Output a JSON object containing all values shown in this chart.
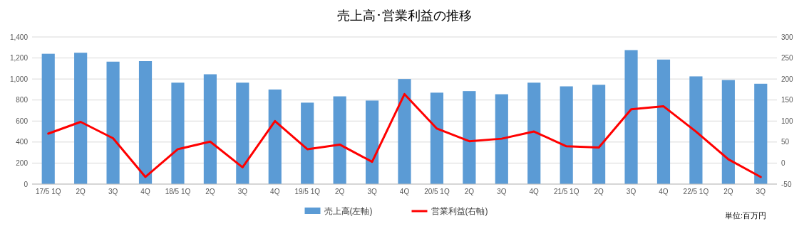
{
  "chart_data": {
    "type": "bar",
    "title": "売上高･営業利益の推移",
    "categories": [
      "17/5 1Q",
      "2Q",
      "3Q",
      "4Q",
      "18/5 1Q",
      "2Q",
      "3Q",
      "4Q",
      "19/5 1Q",
      "2Q",
      "3Q",
      "4Q",
      "20/5 1Q",
      "2Q",
      "3Q",
      "4Q",
      "21/5 1Q",
      "2Q",
      "3Q",
      "4Q",
      "22/5 1Q",
      "2Q",
      "3Q"
    ],
    "series": [
      {
        "name": "売上高(左軸)",
        "color": "#5b9bd5",
        "values": [
          1240,
          1250,
          1165,
          1170,
          965,
          1045,
          965,
          900,
          775,
          835,
          795,
          1000,
          870,
          885,
          855,
          965,
          930,
          945,
          1275,
          1185,
          1025,
          990,
          955
        ]
      },
      {
        "name": "営業利益(右軸)",
        "type": "line",
        "axis": "y2",
        "color": "#ff0000",
        "values": [
          70,
          98,
          59,
          -33,
          33,
          51,
          -10,
          100,
          33,
          44,
          3,
          164,
          82,
          52,
          58,
          75,
          40,
          37,
          128,
          135,
          75,
          9,
          -33
        ]
      }
    ],
    "ylim": [
      0,
      1400
    ],
    "yticks": [
      0,
      200,
      400,
      600,
      800,
      {
        "value": 1000,
        "label": "1,000"
      },
      {
        "value": 1200,
        "label": "1,200"
      },
      {
        "value": 1400,
        "label": "1,400"
      }
    ],
    "y2lim": [
      -50,
      300
    ],
    "y2ticks": [
      -50,
      0,
      50,
      100,
      150,
      200,
      250,
      300
    ],
    "grid": "y",
    "legend": "bottom",
    "marker": "none",
    "line_style": "solid",
    "annotations": [
      "単位:百万円"
    ]
  }
}
